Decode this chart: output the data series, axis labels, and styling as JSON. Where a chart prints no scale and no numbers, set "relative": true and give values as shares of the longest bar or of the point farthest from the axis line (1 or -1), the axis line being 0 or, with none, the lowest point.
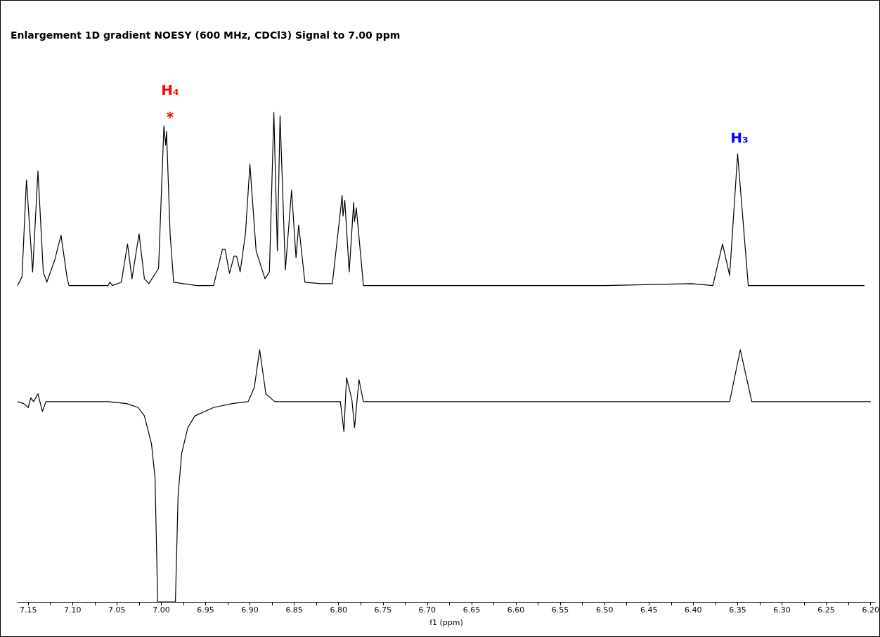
{
  "chart_data": {
    "type": "line",
    "title": "Enlargement 1D gradient NOESY (600 MHz, CDCl3) Signal to 7.00 ppm",
    "relative": true,
    "xlabel": "f1 (ppm)",
    "xlim": [
      7.162,
      6.195
    ],
    "annotations": [
      "H₄",
      "*",
      "H₃"
    ],
    "xticks": [
      {
        "value": 7.15,
        "label": "7.15"
      },
      {
        "value": 7.125,
        "label": null
      },
      {
        "value": 7.1,
        "label": "7.10"
      },
      {
        "value": 7.075,
        "label": null
      },
      {
        "value": 7.05,
        "label": "7.05"
      },
      {
        "value": 7.025,
        "label": null
      },
      {
        "value": 7.0,
        "label": "7.00"
      },
      {
        "value": 6.975,
        "label": null
      },
      {
        "value": 6.95,
        "label": "6.95"
      },
      {
        "value": 6.925,
        "label": null
      },
      {
        "value": 6.9,
        "label": "6.90"
      },
      {
        "value": 6.875,
        "label": null
      },
      {
        "value": 6.85,
        "label": "6.85"
      },
      {
        "value": 6.825,
        "label": null
      },
      {
        "value": 6.8,
        "label": "6.80"
      },
      {
        "value": 6.775,
        "label": null
      },
      {
        "value": 6.75,
        "label": "6.75"
      },
      {
        "value": 6.725,
        "label": null
      },
      {
        "value": 6.7,
        "label": "6.70"
      },
      {
        "value": 6.675,
        "label": null
      },
      {
        "value": 6.65,
        "label": "6.65"
      },
      {
        "value": 6.625,
        "label": null
      },
      {
        "value": 6.6,
        "label": "6.60"
      },
      {
        "value": 6.575,
        "label": null
      },
      {
        "value": 6.55,
        "label": "6.55"
      },
      {
        "value": 6.525,
        "label": null
      },
      {
        "value": 6.5,
        "label": "6.50"
      },
      {
        "value": 6.475,
        "label": null
      },
      {
        "value": 6.45,
        "label": "6.45"
      },
      {
        "value": 6.425,
        "label": null
      },
      {
        "value": 6.4,
        "label": "6.40"
      },
      {
        "value": 6.375,
        "label": null
      },
      {
        "value": 6.35,
        "label": "6.35"
      },
      {
        "value": 6.325,
        "label": null
      },
      {
        "value": 6.3,
        "label": "6.30"
      },
      {
        "value": 6.275,
        "label": null
      },
      {
        "value": 6.25,
        "label": "6.25"
      },
      {
        "value": 6.225,
        "label": null
      },
      {
        "value": 6.2,
        "label": "6.20"
      }
    ],
    "series": [
      {
        "color": "#000000",
        "x": [
          7.162,
          7.157,
          7.152,
          7.145,
          7.139,
          7.133,
          7.129,
          7.12,
          7.113,
          7.106,
          7.104,
          7.08,
          7.06,
          7.058,
          7.055,
          7.045,
          7.038,
          7.033,
          7.025,
          7.019,
          7.014,
          7.003,
          6.997,
          6.995,
          6.994,
          6.99,
          6.986,
          6.96,
          6.941,
          6.931,
          6.928,
          6.923,
          6.918,
          6.915,
          6.911,
          6.905,
          6.9,
          6.893,
          6.883,
          6.878,
          6.873,
          6.869,
          6.866,
          6.86,
          6.853,
          6.848,
          6.845,
          6.838,
          6.82,
          6.807,
          6.796,
          6.795,
          6.793,
          6.788,
          6.783,
          6.782,
          6.78,
          6.772,
          6.7,
          6.6,
          6.5,
          6.402,
          6.378,
          6.367,
          6.359,
          6.35,
          6.338,
          6.3,
          6.207
        ],
        "values": [
          0.646,
          0.664,
          0.862,
          0.674,
          0.88,
          0.674,
          0.653,
          0.699,
          0.749,
          0.66,
          0.646,
          0.646,
          0.646,
          0.653,
          0.646,
          0.653,
          0.731,
          0.66,
          0.752,
          0.66,
          0.65,
          0.681,
          0.972,
          0.933,
          0.961,
          0.752,
          0.653,
          0.646,
          0.646,
          0.72,
          0.72,
          0.671,
          0.706,
          0.706,
          0.674,
          0.752,
          0.894,
          0.717,
          0.66,
          0.674,
          1.0,
          0.717,
          0.993,
          0.678,
          0.841,
          0.703,
          0.77,
          0.653,
          0.65,
          0.65,
          0.83,
          0.788,
          0.82,
          0.674,
          0.816,
          0.777,
          0.805,
          0.646,
          0.646,
          0.646,
          0.646,
          0.65,
          0.646,
          0.731,
          0.667,
          0.915,
          0.646,
          0.646,
          0.646
        ]
      },
      {
        "color": "#000000",
        "x": [
          7.162,
          7.155,
          7.15,
          7.147,
          7.144,
          7.139,
          7.134,
          7.13,
          7.1,
          7.06,
          7.039,
          7.026,
          7.019,
          7.011,
          7.007,
          7.004,
          6.984,
          6.981,
          6.977,
          6.97,
          6.962,
          6.941,
          6.92,
          6.902,
          6.895,
          6.889,
          6.882,
          6.872,
          6.85,
          6.82,
          6.798,
          6.794,
          6.791,
          6.785,
          6.782,
          6.777,
          6.772,
          6.7,
          6.6,
          6.5,
          6.4,
          6.359,
          6.347,
          6.334,
          6.3,
          6.25,
          6.2
        ],
        "values": [
          0.409,
          0.405,
          0.397,
          0.417,
          0.409,
          0.425,
          0.389,
          0.409,
          0.409,
          0.409,
          0.405,
          0.397,
          0.38,
          0.323,
          0.254,
          0,
          0,
          0.217,
          0.303,
          0.356,
          0.38,
          0.397,
          0.405,
          0.409,
          0.438,
          0.515,
          0.425,
          0.409,
          0.409,
          0.409,
          0.409,
          0.348,
          0.458,
          0.413,
          0.356,
          0.454,
          0.409,
          0.409,
          0.409,
          0.409,
          0.409,
          0.409,
          0.515,
          0.409,
          0.409,
          0.409,
          0.409
        ]
      }
    ]
  }
}
